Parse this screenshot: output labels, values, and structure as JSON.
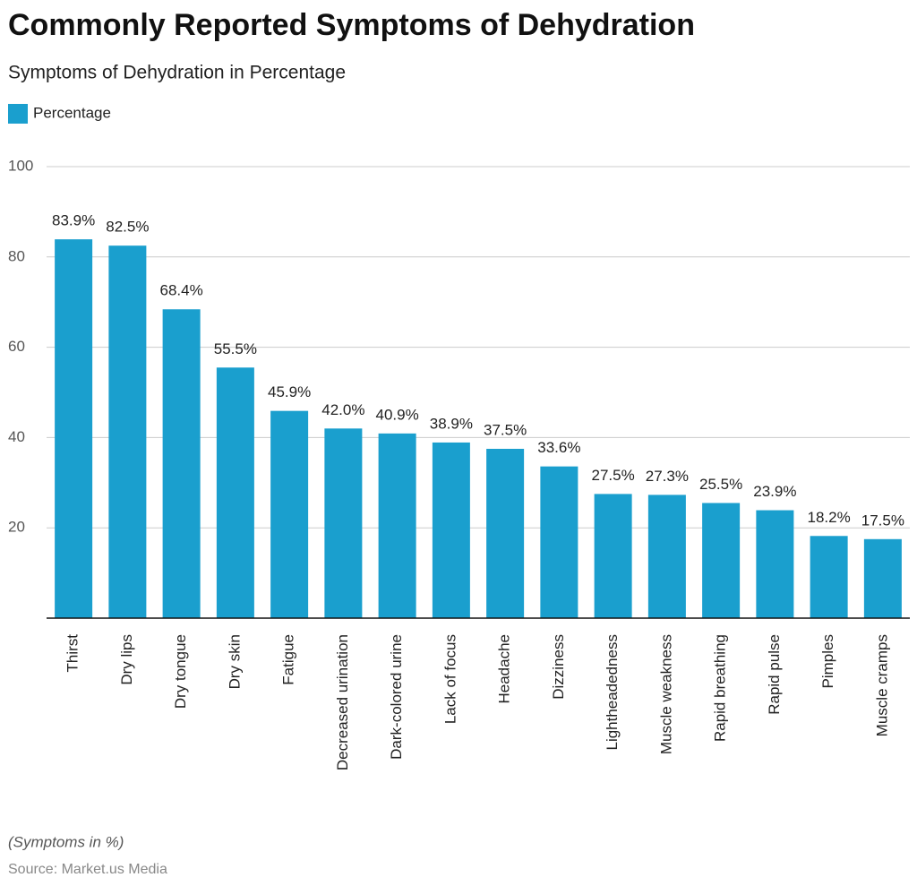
{
  "chart_data": {
    "type": "bar",
    "title": "Commonly Reported Symptoms of Dehydration",
    "subtitle": "Symptoms of Dehydration in Percentage",
    "categories": [
      "Thirst",
      "Dry lips",
      "Dry tongue",
      "Dry skin",
      "Fatigue",
      "Decreased urination",
      "Dark-colored urine",
      "Lack of focus",
      "Headache",
      "Dizziness",
      "Lightheadedness",
      "Muscle weakness",
      "Rapid breathing",
      "Rapid pulse",
      "Pimples",
      "Muscle cramps"
    ],
    "series": [
      {
        "name": "Percentage",
        "color": "#1a9fce",
        "values": [
          83.9,
          82.5,
          68.4,
          55.5,
          45.9,
          42.0,
          40.9,
          38.9,
          37.5,
          33.6,
          27.5,
          27.3,
          25.5,
          23.9,
          18.2,
          17.5
        ],
        "value_labels": [
          "83.9%",
          "82.5%",
          "68.4%",
          "55.5%",
          "45.9%",
          "42.0%",
          "40.9%",
          "38.9%",
          "37.5%",
          "33.6%",
          "27.5%",
          "27.3%",
          "25.5%",
          "23.9%",
          "18.2%",
          "17.5%"
        ]
      }
    ],
    "ylim": [
      0,
      100
    ],
    "yticks": [
      20,
      40,
      60,
      80,
      100
    ],
    "grid": true,
    "note": "(Symptoms in %)",
    "source": "Source: Market.us Media"
  }
}
